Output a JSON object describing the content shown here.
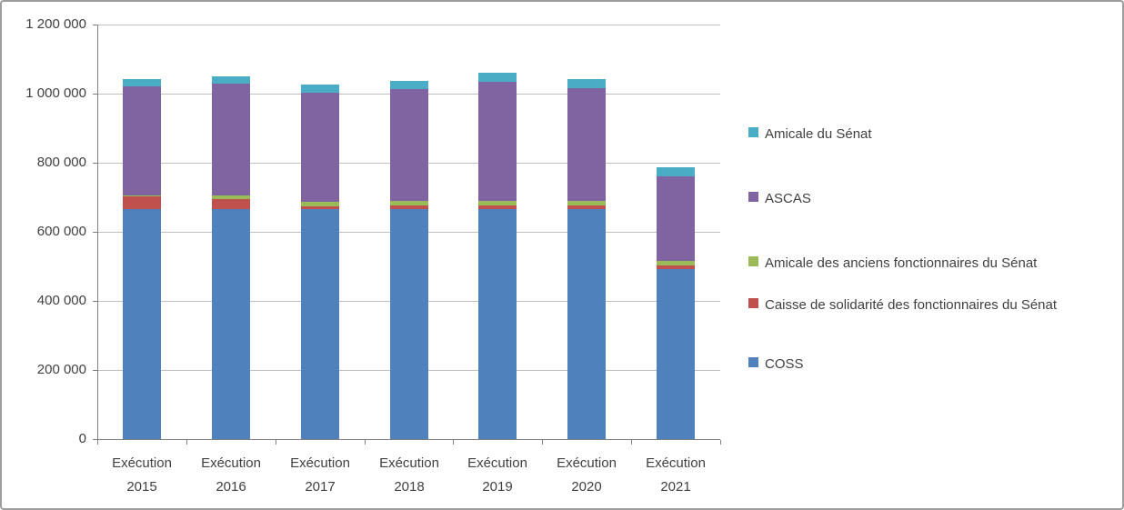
{
  "chart_data": {
    "type": "bar",
    "stacked": true,
    "title": "",
    "xlabel": "",
    "ylabel": "",
    "grid": true,
    "legend_position": "right",
    "ylim": [
      0,
      1200000
    ],
    "ytick_step": 200000,
    "ytick_labels": [
      "0",
      "200 000",
      "400 000",
      "600 000",
      "800 000",
      "1 000 000",
      "1 200 000"
    ],
    "categories": [
      [
        "Exécution",
        "2015"
      ],
      [
        "Exécution",
        "2016"
      ],
      [
        "Exécution",
        "2017"
      ],
      [
        "Exécution",
        "2018"
      ],
      [
        "Exécution",
        "2019"
      ],
      [
        "Exécution",
        "2020"
      ],
      [
        "Exécution",
        "2021"
      ]
    ],
    "series": [
      {
        "name": "COSS",
        "color": "#4F81BD",
        "values": [
          665000,
          666000,
          665000,
          666000,
          666000,
          666000,
          492000
        ]
      },
      {
        "name": "Caisse de solidarité des fonctionnaires du Sénat",
        "color": "#C0504D",
        "values": [
          37000,
          28000,
          9000,
          11000,
          10000,
          10000,
          11000
        ]
      },
      {
        "name": "Amicale des anciens fonctionnaires du Sénat",
        "color": "#9BBB59",
        "values": [
          3000,
          10000,
          12000,
          13000,
          14000,
          13000,
          14000
        ]
      },
      {
        "name": "ASCAS",
        "color": "#8064A2",
        "values": [
          315000,
          325000,
          317000,
          322000,
          343000,
          328000,
          243000
        ]
      },
      {
        "name": "Amicale du Sénat",
        "color": "#4BACC6",
        "values": [
          22000,
          20000,
          24000,
          26000,
          27000,
          25000,
          27000
        ]
      }
    ],
    "legend": [
      {
        "label": "Amicale du Sénat"
      },
      {
        "label": "ASCAS"
      },
      {
        "label": "Amicale des anciens fonctionnaires du Sénat"
      },
      {
        "label": "Caisse de solidarité des fonctionnaires du Sénat",
        "wrap_width": 332
      },
      {
        "label": "COSS"
      }
    ]
  },
  "colors": {
    "gridline": "#bfbfbf",
    "axis": "#808080",
    "text": "#404040"
  }
}
